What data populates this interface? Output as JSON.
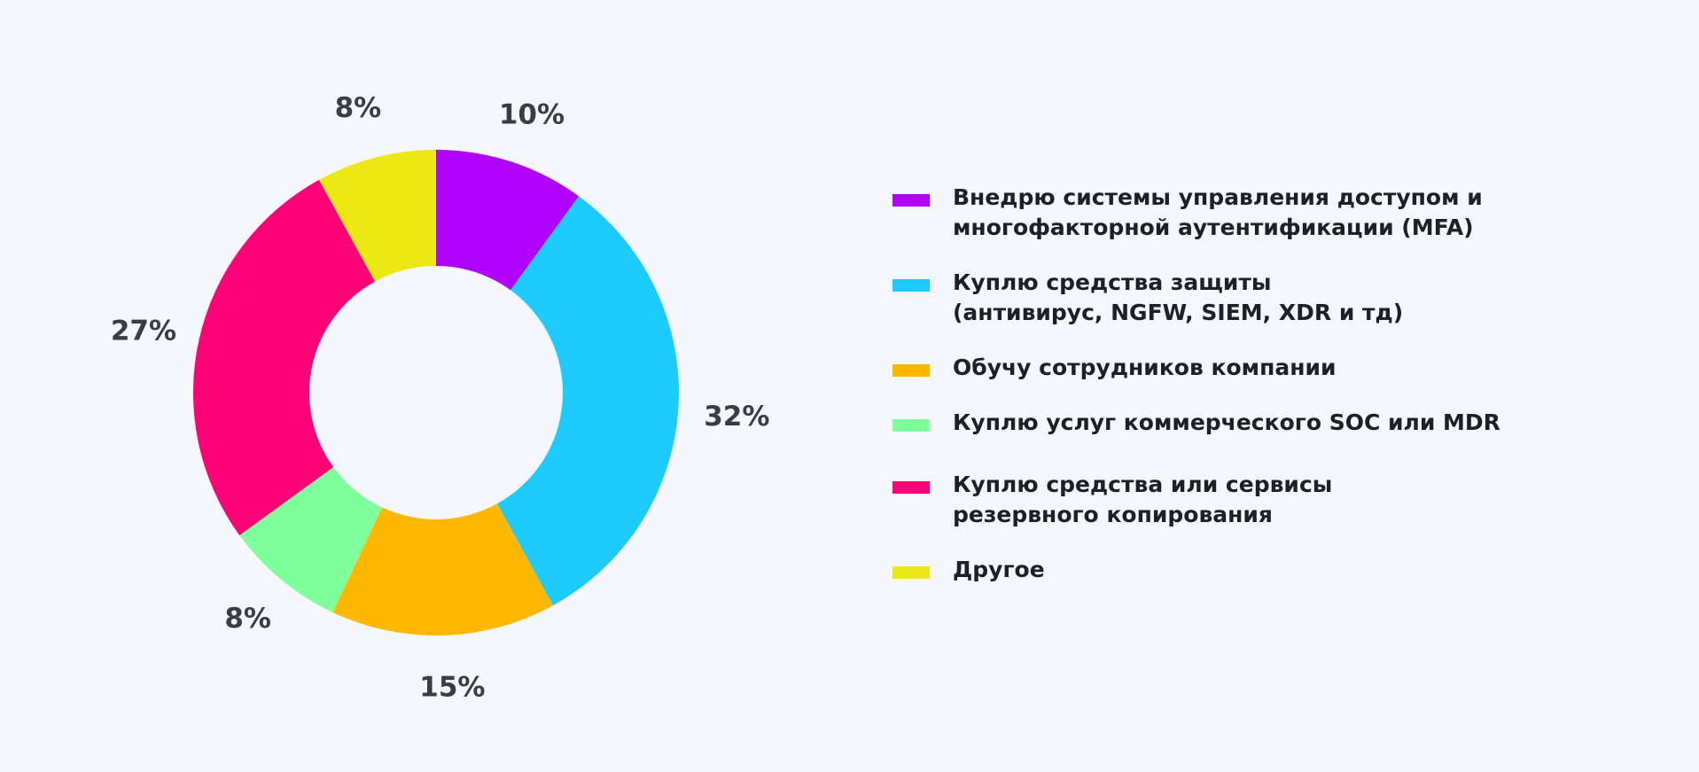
{
  "chart_data": {
    "type": "pie",
    "variant": "donut",
    "title": "",
    "legend_position": "right",
    "values": [
      10,
      32,
      15,
      8,
      27,
      8
    ],
    "labels": [
      "10%",
      "32%",
      "15%",
      "8%",
      "27%",
      "8%"
    ],
    "categories": [
      "Внедрю системы управления доступом и\nмногофакторной аутентификации (MFA)",
      "Куплю средства защиты\n(антивирус, NGFW, SIEM, XDR и тд)",
      "Обучу сотрудников компании",
      "Куплю услуг коммерческого SOC или MDR",
      "Куплю средства или сервисы\nрезервного копирования",
      "Другое"
    ],
    "colors": [
      "#b000ff",
      "#1ecbff",
      "#ffb800",
      "#80ff9d",
      "#ff0077",
      "#ece814"
    ]
  }
}
